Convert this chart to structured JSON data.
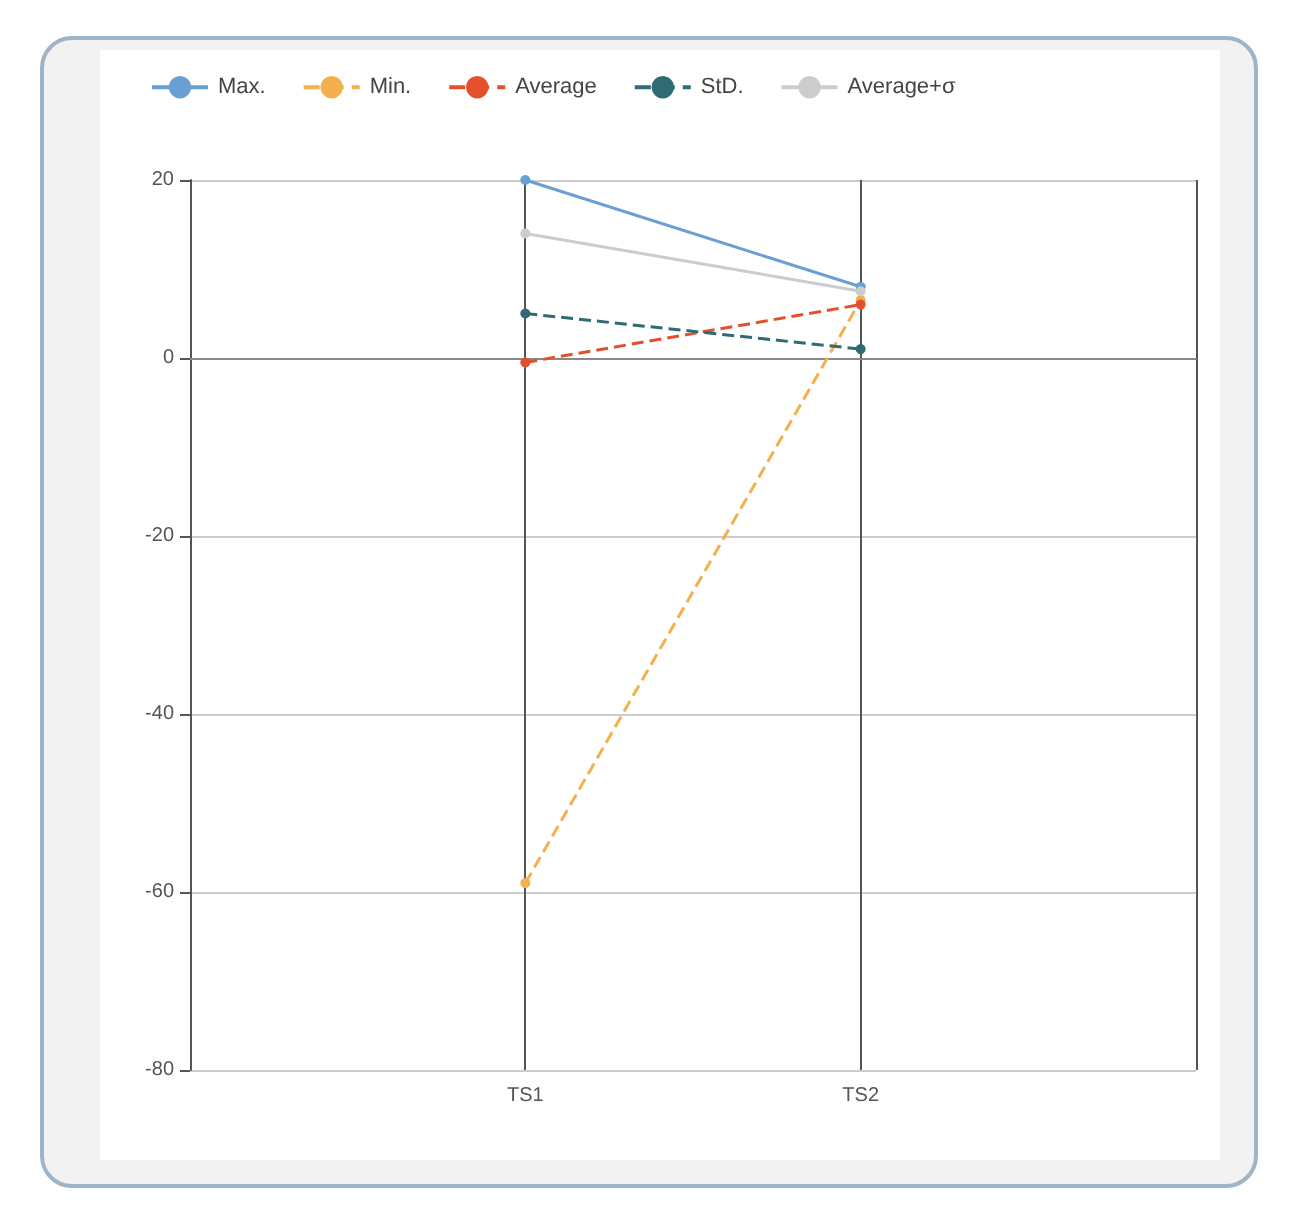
{
  "chart_data": {
    "type": "line",
    "categories": [
      null,
      "TS1",
      "TS2",
      null
    ],
    "series": [
      {
        "name": "Max.",
        "color": "#6a9fd4",
        "line_style": "solid",
        "values": [
          null,
          20,
          8,
          null
        ]
      },
      {
        "name": "Min.",
        "color": "#f2b14c",
        "line_style": "dashed",
        "values": [
          null,
          -59,
          6.5,
          null
        ]
      },
      {
        "name": "Average",
        "color": "#e4502e",
        "line_style": "dashed",
        "values": [
          null,
          -0.5,
          6,
          null
        ]
      },
      {
        "name": "StD.",
        "color": "#2f6b74",
        "line_style": "dashed",
        "values": [
          null,
          5,
          1,
          null
        ]
      },
      {
        "name": "Average+σ",
        "color": "#cccccc",
        "line_style": "solid",
        "values": [
          null,
          14,
          7.5,
          null
        ]
      }
    ],
    "ylim": [
      -80,
      20
    ],
    "yticks": [
      -80,
      -60,
      -40,
      -20,
      0,
      20
    ],
    "grid": true,
    "legend": "top left",
    "marker": "circle"
  }
}
